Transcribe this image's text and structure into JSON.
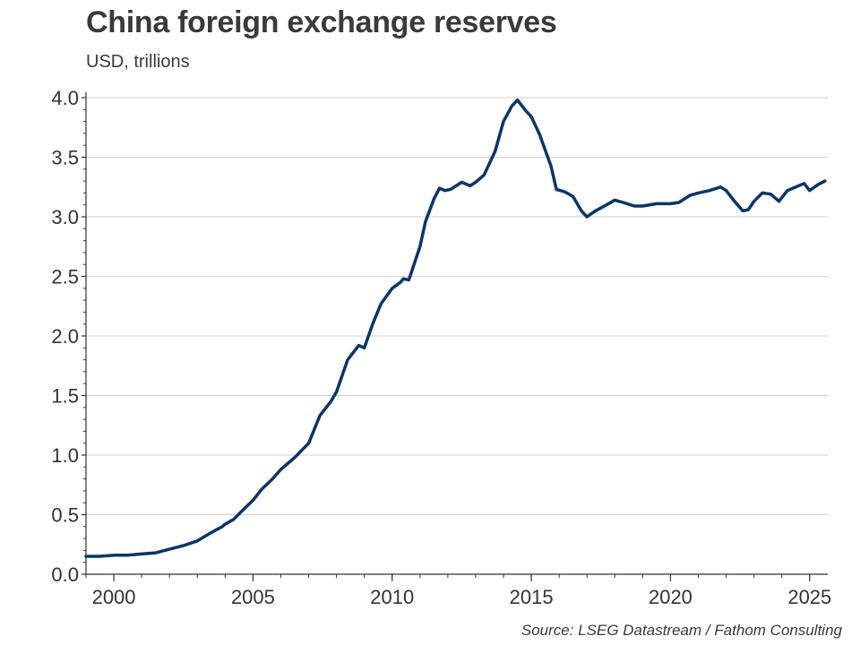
{
  "title": "China foreign exchange reserves",
  "subtitle": "USD, trillions",
  "source": "Source: LSEG Datastream / Fathom Consulting",
  "colors": {
    "line": "#0b3564",
    "grid": "#d0d0d0",
    "axis": "#333333"
  },
  "chart_data": {
    "type": "line",
    "title": "China foreign exchange reserves",
    "ylabel": "USD, trillions",
    "xlim": [
      1999.0,
      2025.65
    ],
    "ylim": [
      0,
      4.0
    ],
    "yticks": [
      0.0,
      0.5,
      1.0,
      1.5,
      2.0,
      2.5,
      3.0,
      3.5,
      4.0
    ],
    "ytick_labels": [
      "0.0",
      "0.5",
      "1.0",
      "1.5",
      "2.0",
      "2.5",
      "3.0",
      "3.5",
      "4.0"
    ],
    "xticks": [
      2000,
      2005,
      2010,
      2015,
      2020,
      2025
    ],
    "xtick_labels": [
      "2000",
      "2005",
      "2010",
      "2015",
      "2020",
      "2025"
    ],
    "grid": true,
    "legend": "none",
    "series": [
      {
        "x": [
          1999.0,
          1999.5,
          2000.0,
          2000.5,
          2001.0,
          2001.5,
          2002.0,
          2002.5,
          2003.0,
          2003.5,
          2003.9,
          2004.0,
          2004.3,
          2004.6,
          2005.0,
          2005.3,
          2005.7,
          2006.0,
          2006.5,
          2007.0,
          2007.4,
          2007.8,
          2008.0,
          2008.4,
          2008.6,
          2008.8,
          2009.0,
          2009.3,
          2009.6,
          2010.0,
          2010.3,
          2010.4,
          2010.6,
          2011.0,
          2011.2,
          2011.5,
          2011.7,
          2011.9,
          2012.1,
          2012.5,
          2012.8,
          2013.0,
          2013.3,
          2013.5,
          2013.7,
          2014.0,
          2014.3,
          2014.5,
          2014.8,
          2015.0,
          2015.3,
          2015.5,
          2015.7,
          2015.9,
          2016.2,
          2016.5,
          2016.8,
          2017.0,
          2017.3,
          2017.7,
          2018.0,
          2018.3,
          2018.7,
          2019.0,
          2019.5,
          2020.0,
          2020.3,
          2020.7,
          2021.0,
          2021.4,
          2021.8,
          2022.0,
          2022.3,
          2022.6,
          2022.8,
          2023.0,
          2023.3,
          2023.6,
          2023.9,
          2024.2,
          2024.5,
          2024.8,
          2025.0,
          2025.3,
          2025.55
        ],
        "values": [
          0.15,
          0.15,
          0.16,
          0.16,
          0.17,
          0.18,
          0.21,
          0.24,
          0.28,
          0.35,
          0.4,
          0.42,
          0.46,
          0.53,
          0.62,
          0.71,
          0.8,
          0.88,
          0.98,
          1.1,
          1.33,
          1.45,
          1.53,
          1.8,
          1.86,
          1.92,
          1.9,
          2.1,
          2.27,
          2.4,
          2.45,
          2.48,
          2.47,
          2.75,
          2.96,
          3.15,
          3.24,
          3.22,
          3.23,
          3.29,
          3.26,
          3.29,
          3.35,
          3.45,
          3.55,
          3.8,
          3.93,
          3.98,
          3.89,
          3.84,
          3.69,
          3.56,
          3.43,
          3.23,
          3.21,
          3.17,
          3.05,
          3.0,
          3.05,
          3.1,
          3.14,
          3.12,
          3.09,
          3.09,
          3.11,
          3.11,
          3.12,
          3.18,
          3.2,
          3.22,
          3.25,
          3.22,
          3.13,
          3.05,
          3.06,
          3.13,
          3.2,
          3.19,
          3.13,
          3.22,
          3.25,
          3.28,
          3.22,
          3.27,
          3.3
        ]
      }
    ]
  }
}
